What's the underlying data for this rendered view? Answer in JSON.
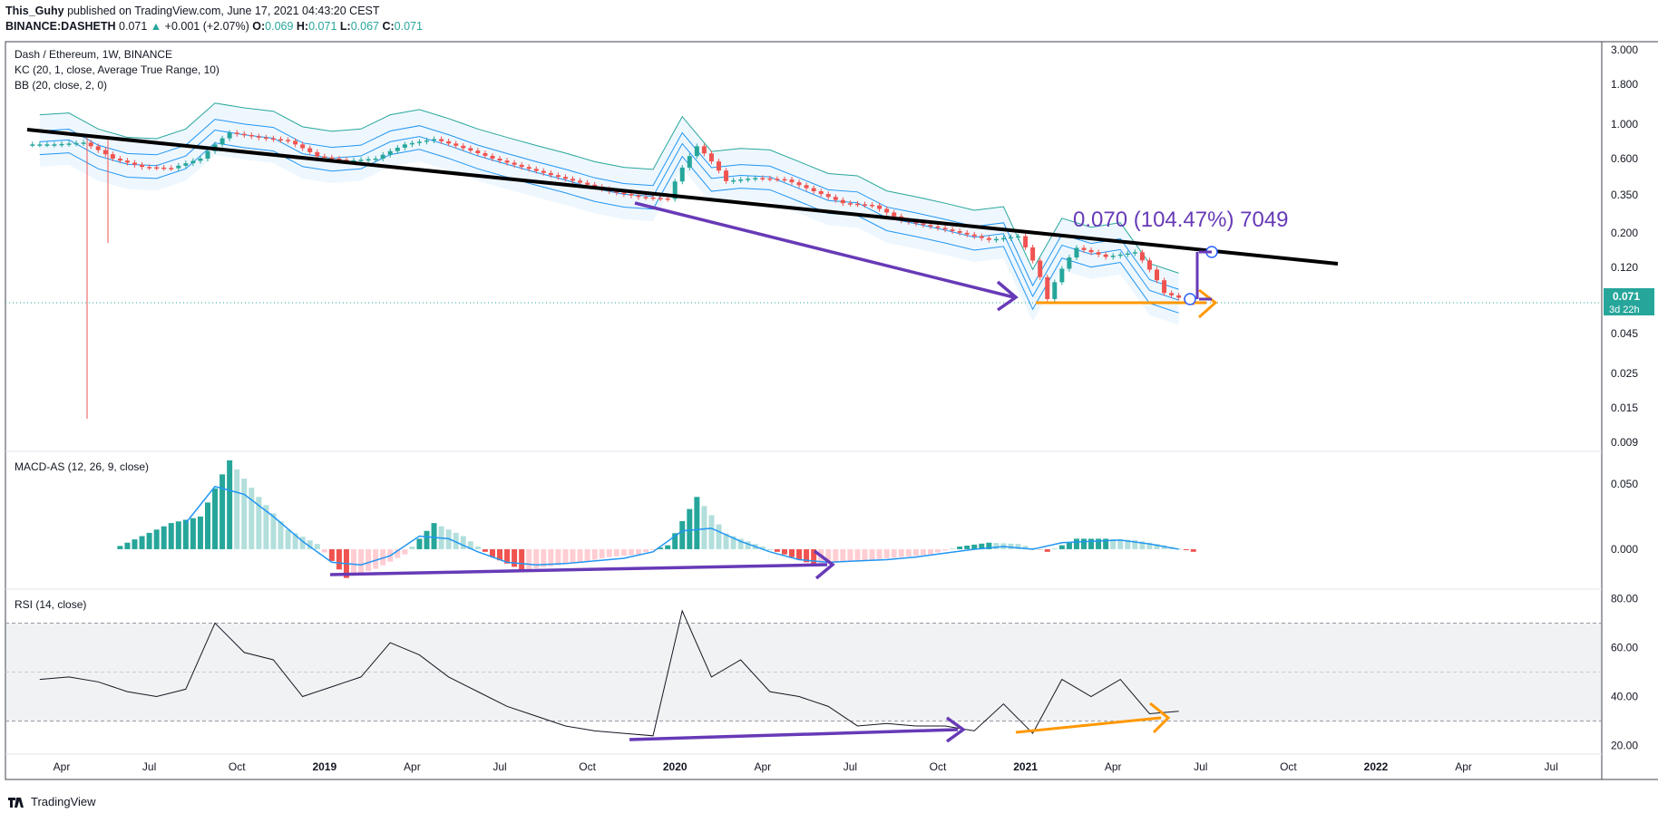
{
  "header": {
    "author": "This_Guhy",
    "published": "published on TradingView.com, June 17, 2021 04:43:20 CEST",
    "symbol": "BINANCE:DASHETH",
    "last": "0.071",
    "change": "+0.001 (+2.07%)",
    "o_label": "O:",
    "o": "0.069",
    "h_label": "H:",
    "h": "0.071",
    "l_label": "L:",
    "l": "0.067",
    "c_label": "C:",
    "c": "0.071"
  },
  "footer": {
    "brand": "TradingView"
  },
  "colors": {
    "up": "#26a69a",
    "down": "#ef5350",
    "trendline": "#000000",
    "purple": "#673ab7",
    "orange": "#ff9800",
    "macd_line": "#2196f3",
    "kc_band": "#2196f3",
    "bb_band": "#26a69a"
  },
  "chart_data": [
    {
      "panel": "price",
      "type": "candlestick",
      "scale": "log",
      "title": "Dash / Ethereum, 1W, BINANCE",
      "indicators": [
        "KC (20, 1, close, Average True Range, 10)",
        "BB (20, close, 2, 0)"
      ],
      "yticks": [
        "3.000",
        "1.800",
        "1.000",
        "0.600",
        "0.350",
        "0.200",
        "0.120",
        "0.071",
        "0.045",
        "0.025",
        "0.015",
        "0.009"
      ],
      "ylim": [
        0.009,
        3.0
      ],
      "price_label": "0.071",
      "price_label_time": "3d 22h",
      "measure_label": "0.070 (104.47%) 7049",
      "x": [
        "2018-03",
        "2018-04",
        "2018-05",
        "2018-06",
        "2018-07",
        "2018-08",
        "2018-09",
        "2018-10",
        "2018-11",
        "2018-12",
        "2019-01",
        "2019-02",
        "2019-03",
        "2019-04",
        "2019-05",
        "2019-06",
        "2019-07",
        "2019-08",
        "2019-09",
        "2019-10",
        "2019-11",
        "2019-12",
        "2020-01",
        "2020-02",
        "2020-03",
        "2020-04",
        "2020-05",
        "2020-06",
        "2020-07",
        "2020-08",
        "2020-09",
        "2020-10",
        "2020-11",
        "2020-12",
        "2021-01",
        "2021-02",
        "2021-03",
        "2021-04",
        "2021-05",
        "2021-06"
      ],
      "close": [
        0.74,
        0.76,
        0.6,
        0.53,
        0.52,
        0.6,
        0.88,
        0.82,
        0.78,
        0.62,
        0.58,
        0.6,
        0.74,
        0.8,
        0.7,
        0.6,
        0.53,
        0.47,
        0.42,
        0.37,
        0.34,
        0.33,
        0.72,
        0.43,
        0.45,
        0.44,
        0.37,
        0.31,
        0.3,
        0.24,
        0.22,
        0.2,
        0.18,
        0.19,
        0.075,
        0.16,
        0.14,
        0.15,
        0.082,
        0.071
      ]
    },
    {
      "panel": "macd",
      "type": "bar+line",
      "title": "MACD-AS (12, 26, 9, close)",
      "yticks": [
        "0.050",
        "0.000"
      ],
      "ylim": [
        -0.025,
        0.07
      ],
      "x": [
        "2018-06",
        "2018-07",
        "2018-08",
        "2018-09",
        "2018-10",
        "2018-11",
        "2018-12",
        "2019-01",
        "2019-02",
        "2019-03",
        "2019-04",
        "2019-05",
        "2019-06",
        "2019-07",
        "2019-08",
        "2019-09",
        "2019-10",
        "2019-11",
        "2019-12",
        "2020-01",
        "2020-02",
        "2020-03",
        "2020-04",
        "2020-05",
        "2020-06",
        "2020-07",
        "2020-08",
        "2020-09",
        "2020-10",
        "2020-11",
        "2020-12",
        "2021-01",
        "2021-02",
        "2021-03",
        "2021-04",
        "2021-05",
        "2021-06"
      ],
      "histogram": [
        0.01,
        0.02,
        0.025,
        0.068,
        0.04,
        0.015,
        0.004,
        -0.022,
        -0.015,
        -0.004,
        0.02,
        0.01,
        -0.006,
        -0.016,
        -0.013,
        -0.01,
        -0.006,
        -0.004,
        0.003,
        0.04,
        0.012,
        0.004,
        -0.004,
        -0.012,
        -0.01,
        -0.008,
        -0.006,
        -0.004,
        0.002,
        0.005,
        0.004,
        -0.002,
        0.008,
        0.008,
        0.007,
        0.003,
        -0.002
      ],
      "signal": [
        null,
        null,
        0.02,
        0.048,
        0.042,
        0.025,
        0.006,
        -0.01,
        -0.012,
        -0.005,
        0.01,
        0.008,
        -0.002,
        -0.01,
        -0.012,
        -0.011,
        -0.009,
        -0.007,
        -0.002,
        0.014,
        0.016,
        0.006,
        -0.002,
        -0.008,
        -0.01,
        -0.009,
        -0.008,
        -0.006,
        -0.003,
        0.0,
        0.002,
        0.0,
        0.005,
        0.006,
        0.007,
        0.004,
        0.0
      ]
    },
    {
      "panel": "rsi",
      "type": "line",
      "title": "RSI (14, close)",
      "yticks": [
        "80.00",
        "60.00",
        "40.00",
        "20.00"
      ],
      "ylim": [
        18,
        82
      ],
      "bands": [
        30,
        70
      ],
      "midline": 50,
      "x": [
        "2018-03",
        "2018-04",
        "2018-05",
        "2018-06",
        "2018-07",
        "2018-08",
        "2018-09",
        "2018-10",
        "2018-11",
        "2018-12",
        "2019-01",
        "2019-02",
        "2019-03",
        "2019-04",
        "2019-05",
        "2019-06",
        "2019-07",
        "2019-08",
        "2019-09",
        "2019-10",
        "2019-11",
        "2019-12",
        "2020-01",
        "2020-02",
        "2020-03",
        "2020-04",
        "2020-05",
        "2020-06",
        "2020-07",
        "2020-08",
        "2020-09",
        "2020-10",
        "2020-11",
        "2020-12",
        "2021-01",
        "2021-02",
        "2021-03",
        "2021-04",
        "2021-05",
        "2021-06"
      ],
      "values": [
        47,
        48,
        46,
        42,
        40,
        43,
        70,
        58,
        55,
        40,
        44,
        48,
        62,
        57,
        48,
        42,
        36,
        32,
        28,
        26,
        25,
        24,
        75,
        48,
        55,
        42,
        40,
        36,
        28,
        29,
        28,
        28,
        26,
        37,
        25,
        47,
        40,
        47,
        33,
        34
      ]
    }
  ],
  "xaxis": {
    "labels": [
      {
        "t": "Apr",
        "bold": false
      },
      {
        "t": "Jul",
        "bold": false
      },
      {
        "t": "Oct",
        "bold": false
      },
      {
        "t": "2019",
        "bold": true
      },
      {
        "t": "Apr",
        "bold": false
      },
      {
        "t": "Jul",
        "bold": false
      },
      {
        "t": "Oct",
        "bold": false
      },
      {
        "t": "2020",
        "bold": true
      },
      {
        "t": "Apr",
        "bold": false
      },
      {
        "t": "Jul",
        "bold": false
      },
      {
        "t": "Oct",
        "bold": false
      },
      {
        "t": "2021",
        "bold": true
      },
      {
        "t": "Apr",
        "bold": false
      },
      {
        "t": "Jul",
        "bold": false
      },
      {
        "t": "Oct",
        "bold": false
      },
      {
        "t": "2022",
        "bold": true
      },
      {
        "t": "Apr",
        "bold": false
      },
      {
        "t": "Jul",
        "bold": false
      }
    ]
  }
}
